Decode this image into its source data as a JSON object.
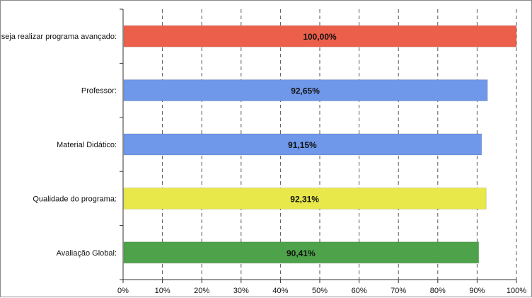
{
  "chart_data": {
    "type": "bar",
    "orientation": "horizontal",
    "title": "",
    "xlabel": "",
    "ylabel": "",
    "xlim": [
      0,
      100
    ],
    "grid": true,
    "categories": [
      "Deseja realizar programa avançado:",
      "Professor:",
      "Material Didático:",
      "Qualidade do programa:",
      "Avaliação Global:"
    ],
    "values": [
      100.0,
      92.65,
      91.15,
      92.31,
      90.41
    ],
    "data_labels": [
      "100,00%",
      "92,65%",
      "91,15%",
      "92,31%",
      "90,41%"
    ],
    "bar_colors": [
      "#ec5f4b",
      "#6f98ea",
      "#6f98ea",
      "#e8e84b",
      "#4ea24a"
    ],
    "x_ticks": [
      0,
      10,
      20,
      30,
      40,
      50,
      60,
      70,
      80,
      90,
      100
    ],
    "x_tick_labels": [
      "0%",
      "10%",
      "20%",
      "30%",
      "40%",
      "50%",
      "60%",
      "70%",
      "80%",
      "90%",
      "100%"
    ]
  }
}
